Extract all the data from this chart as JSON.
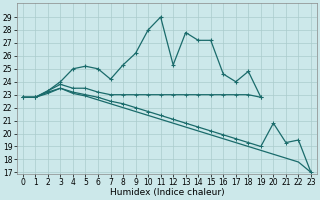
{
  "xlabel": "Humidex (Indice chaleur)",
  "bg_color": "#cce8ea",
  "grid_color": "#aacccc",
  "line_color": "#1a6b6b",
  "xlim": [
    -0.5,
    23.5
  ],
  "ylim": [
    17,
    30
  ],
  "yticks": [
    17,
    18,
    19,
    20,
    21,
    22,
    23,
    24,
    25,
    26,
    27,
    28,
    29
  ],
  "xticks": [
    0,
    1,
    2,
    3,
    4,
    5,
    6,
    7,
    8,
    9,
    10,
    11,
    12,
    13,
    14,
    15,
    16,
    17,
    18,
    19,
    20,
    21,
    22,
    23
  ],
  "line1_y": [
    22.8,
    22.8,
    23.3,
    24.0,
    25.0,
    25.2,
    25.0,
    24.2,
    25.3,
    26.2,
    28.0,
    29.0,
    25.3,
    27.8,
    27.2,
    27.2,
    24.6,
    24.0,
    24.8,
    22.8,
    null,
    null,
    null,
    null
  ],
  "line2_y": [
    22.8,
    22.8,
    23.3,
    23.8,
    23.5,
    23.5,
    23.2,
    23.0,
    23.0,
    23.0,
    23.0,
    23.0,
    23.0,
    23.0,
    23.0,
    23.0,
    23.0,
    23.0,
    23.0,
    22.8,
    null,
    null,
    null,
    null
  ],
  "line3_y": [
    22.8,
    22.8,
    23.2,
    23.5,
    23.2,
    23.0,
    22.8,
    22.5,
    22.3,
    22.0,
    21.7,
    21.4,
    21.1,
    20.8,
    20.5,
    20.2,
    19.9,
    19.6,
    19.3,
    19.0,
    20.8,
    19.3,
    19.5,
    17.0
  ],
  "line4_y": [
    22.8,
    22.8,
    23.1,
    23.5,
    23.1,
    22.9,
    22.6,
    22.3,
    22.0,
    21.7,
    21.4,
    21.1,
    20.8,
    20.5,
    20.2,
    19.9,
    19.6,
    19.3,
    19.0,
    18.7,
    18.4,
    18.1,
    17.8,
    17.0
  ],
  "tick_fontsize": 5.5,
  "xlabel_fontsize": 6.5
}
